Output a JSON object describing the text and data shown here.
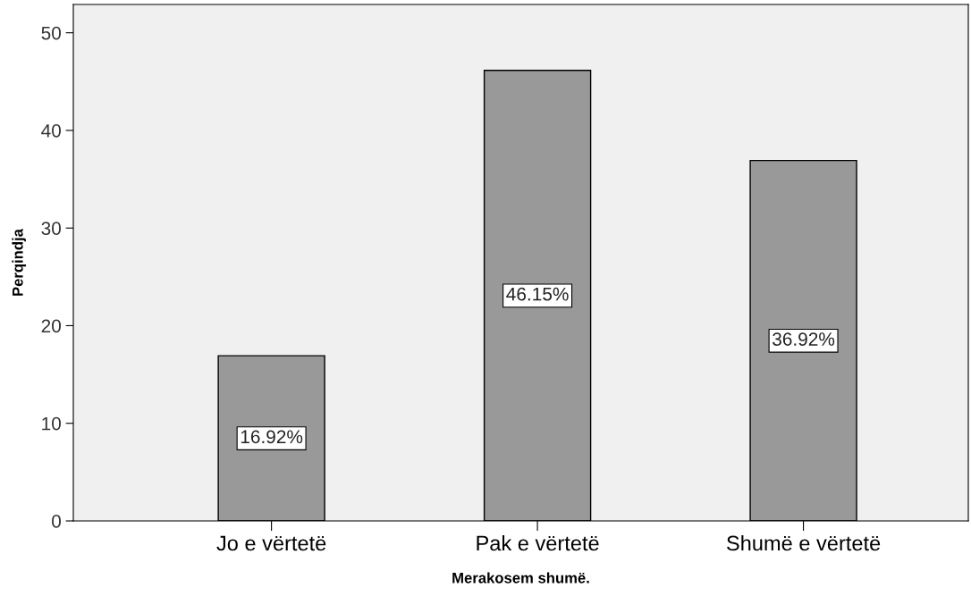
{
  "chart_data": {
    "type": "bar",
    "xlabel": "Merakosem shumë.",
    "ylabel": "Perqindja",
    "categories": [
      "Jo e vërtetë",
      "Pak e vërtetë",
      "Shumë e vërtetë"
    ],
    "values": [
      16.92,
      46.15,
      36.92
    ],
    "value_labels": [
      "16.92%",
      "46.15%",
      "36.92%"
    ],
    "color": "#999999",
    "ylim": [
      0,
      52.9
    ],
    "yticks": [
      0,
      10,
      20,
      30,
      40,
      50
    ],
    "grid": false
  }
}
